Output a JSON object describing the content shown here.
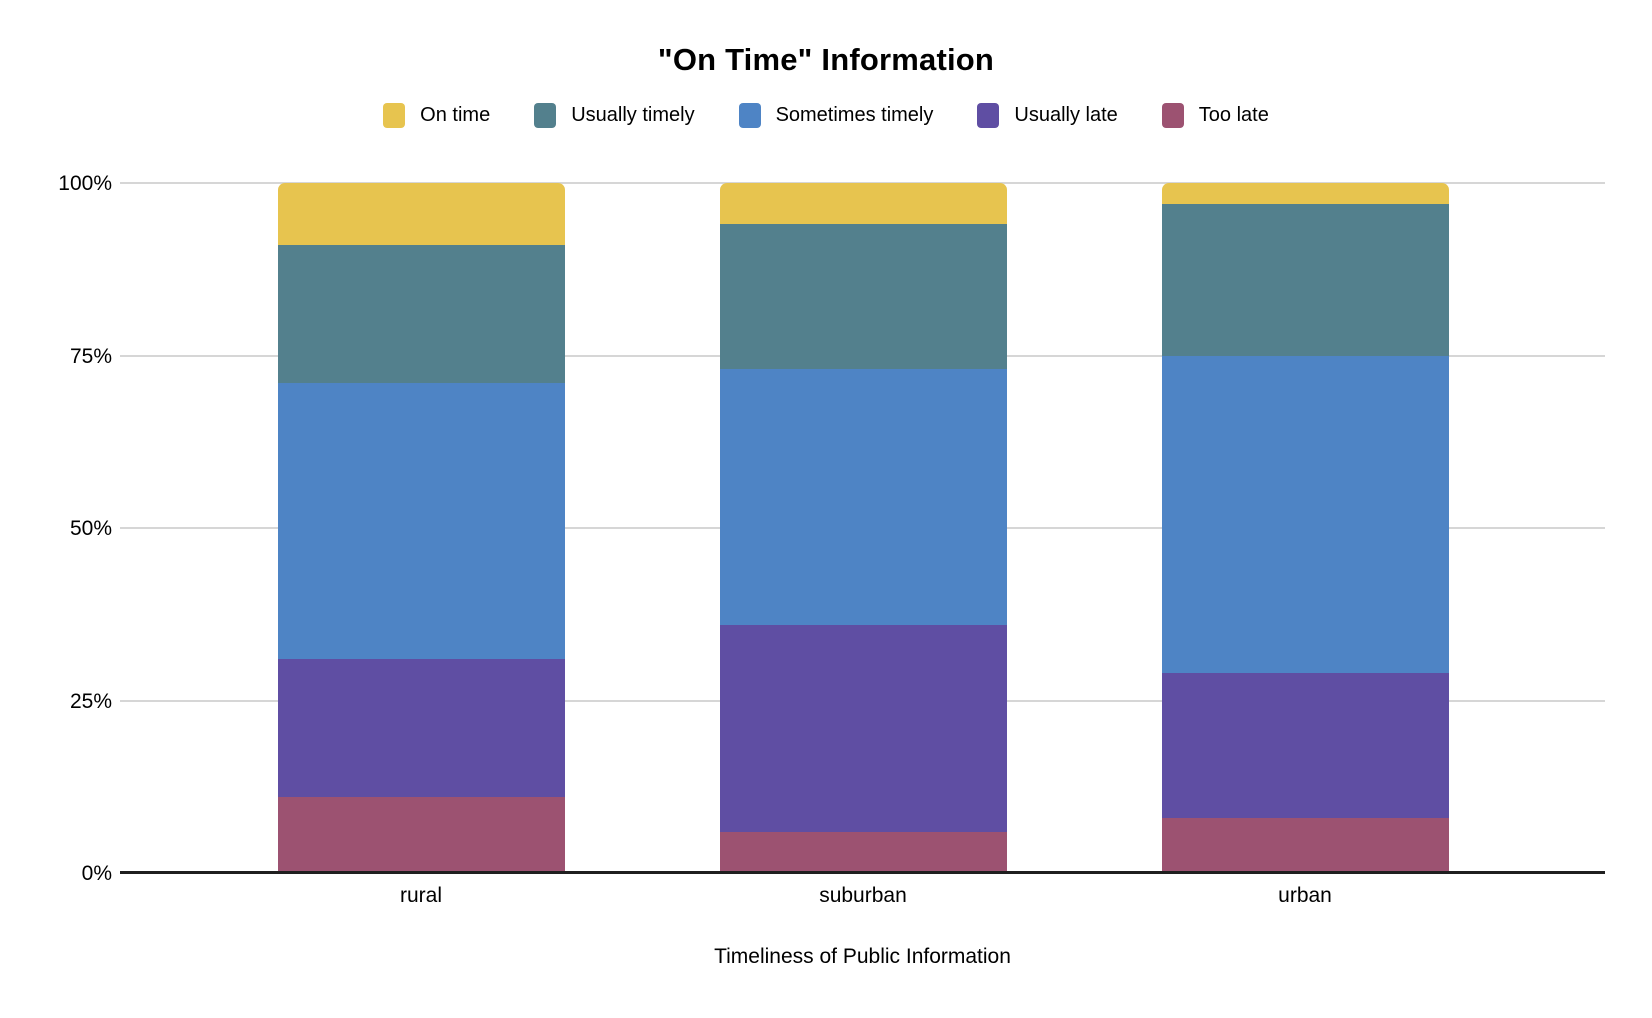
{
  "title": "\"On Time\" Information",
  "x_axis_title": "Timeliness of Public Information",
  "chart_data": {
    "type": "bar",
    "variant": "stacked-100-percent-column",
    "title": "\"On Time\" Information",
    "xlabel": "Timeliness of Public Information",
    "ylabel": "",
    "categories": [
      "rural",
      "suburban",
      "urban"
    ],
    "series": [
      {
        "name": "On time",
        "color": "#E7C44F",
        "values": [
          9,
          6,
          3
        ]
      },
      {
        "name": "Usually timely",
        "color": "#53808D",
        "values": [
          20,
          21,
          22
        ]
      },
      {
        "name": "Sometimes timely",
        "color": "#4E84C5",
        "values": [
          40,
          37,
          46
        ]
      },
      {
        "name": "Usually late",
        "color": "#5F4EA3",
        "values": [
          20,
          30,
          21
        ]
      },
      {
        "name": "Too late",
        "color": "#9C5271",
        "values": [
          11,
          6,
          8
        ]
      }
    ],
    "unit": "%",
    "ylim": [
      0,
      100
    ],
    "y_tick_labels": [
      "100%",
      "75%",
      "50%",
      "25%",
      "0%"
    ],
    "y_tick_values": [
      100,
      75,
      50,
      25,
      0
    ],
    "grid": true,
    "gridline_color": "#D6D6D6",
    "axis_line_color": "#1F1F1F",
    "legend_position": "top"
  }
}
